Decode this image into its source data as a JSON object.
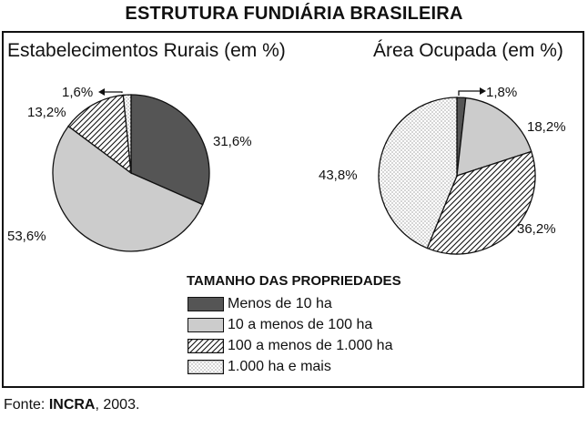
{
  "header": {
    "title": "ESTRUTURA FUNDIÁRIA BRASILEIRA"
  },
  "legend": {
    "title": "TAMANHO DAS PROPRIEDADES",
    "items": [
      {
        "label": "Menos de 10 ha",
        "pattern": "dark"
      },
      {
        "label": "10 a menos de 100 ha",
        "pattern": "light"
      },
      {
        "label": "100 a menos de 1.000 ha",
        "pattern": "hatch"
      },
      {
        "label": "1.000 ha e mais",
        "pattern": "dots"
      }
    ]
  },
  "source": {
    "prefix": "Fonte: ",
    "org": "INCRA",
    "suffix": ", 2003."
  },
  "colors": {
    "dark": "#555555",
    "light": "#cccccc",
    "line": "#111111",
    "background": "#ffffff"
  },
  "chart_data": [
    {
      "type": "pie",
      "title": "Estabelecimentos Rurais (em %)",
      "categories": [
        "Menos de 10 ha",
        "10 a menos de 100 ha",
        "100 a menos de 1.000 ha",
        "1.000 ha e mais"
      ],
      "values": [
        31.6,
        53.6,
        13.2,
        1.6
      ],
      "labels": [
        "31,6%",
        "53,6%",
        "13,2%",
        "1,6%"
      ]
    },
    {
      "type": "pie",
      "title": "Área Ocupada (em %)",
      "categories": [
        "Menos de 10 ha",
        "10 a menos de 100 ha",
        "100 a menos de 1.000 ha",
        "1.000 ha e mais"
      ],
      "values": [
        1.8,
        18.2,
        36.2,
        43.8
      ],
      "labels": [
        "1,8%",
        "18,2%",
        "36,2%",
        "43,8%"
      ]
    }
  ]
}
